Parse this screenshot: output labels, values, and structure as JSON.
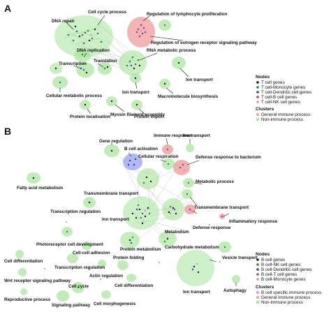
{
  "colors": {
    "non_immune": "#a6e39a",
    "general_immune": "#f2a7a7",
    "b_specific": "#aab0ee",
    "t_cell": "#1a1a1a",
    "t_mono": "#2e8b3e",
    "t_dc": "#3b3bc4",
    "t_b": "#7a4fa0",
    "t_nk": "#e88aa8",
    "b_cell": "#1a1a1a",
    "b_nk": "#2e8b3e",
    "b_dc": "#3b3bc4",
    "b_t": "#7a4fa0",
    "b_mono": "#e88aa8"
  },
  "panelA": {
    "letter": "A",
    "labels": {
      "cell_cycle": "Cell cycle process",
      "lymph_prolif": "Regulation of lymphocyte proliferation",
      "dna_repair": "DNA repair",
      "estrogen": "Regulation of estrogen receptor signaling pathway",
      "rna_metab": "RNA metabolic process",
      "dna_repl": "DNA replication",
      "transcription": "Transcription",
      "translation": "Translation",
      "ion_transport_r": "Ion transport",
      "cell_metab": "Cellular metabolic process",
      "ion_transport_m": "Ion transport",
      "macromol": "Macromolecule biosynthesis",
      "myosin": "Myosin filament assembly",
      "protein_loc": "Protein localisation",
      "protein_import": "Protein import"
    },
    "legend": {
      "nodes_title": "Nodes",
      "nodes": [
        "T cell genes",
        "T cell-Monocyte genes",
        "T cell-Dendritic cell genes",
        "T cell-B cell genes",
        "T cell-NK cell genes"
      ],
      "clusters_title": "Clusters",
      "clusters": [
        "General immune process",
        "Non-immune process"
      ]
    }
  },
  "panelB": {
    "letter": "B",
    "labels": {
      "immune_response": "Immune response",
      "ion_transport_top": "Ion transport",
      "gene_reg": "Gene regulation",
      "b_activation": "B cell activation",
      "cell_resp": "Cellular respiration",
      "defense_bact": "Defense response to bacterium",
      "metabolic": "Metabolic process",
      "fatty_acid": "Fatty acid metabolism",
      "transmembrane_l": "Transmembrane transport",
      "transcription_reg": "Transcription regulation",
      "transmembrane_r": "Transmembrane transport",
      "inflammatory": "Inflammatory response",
      "ion_transport_mid": "Ion transport",
      "defense_resp": "Defense response",
      "metabolism": "Metabolism",
      "photoreceptor": "Photoreceptor cell development",
      "protein_metab": "Protein metabolism",
      "carb_metab": "Carbohydrate metabolism",
      "cell_adhesion": "Cell-cell adhesion",
      "cell_diff_l": "Cell differentiation",
      "transcription_reg2": "Transcription regulation",
      "protein_folding": "Protein folding",
      "action_reg": "Actin regulation",
      "vesicle": "Vesicle transport",
      "wnt": "Wnt receptor signaling pathway",
      "cell_cycle": "Cell cycle",
      "cell_diff_m": "Cell differentiation",
      "autophagy": "Autophagy",
      "reproductive": "Reproductive process",
      "ion_transport_bot": "Ion transport",
      "signaling": "Signaling pathway",
      "morphogenesis": "Cell morphogenesis"
    },
    "legend": {
      "nodes_title": "Nodes",
      "nodes": [
        "B cell genes",
        "B cell-NK cell genes",
        "B cell-Dendritic cell genes",
        "B cell-T cell genes",
        "B cell-Monocyte genes"
      ],
      "clusters_title": "Clusters",
      "clusters": [
        "B cell specific immune process",
        "General immune process",
        "Non-immune process"
      ]
    }
  }
}
